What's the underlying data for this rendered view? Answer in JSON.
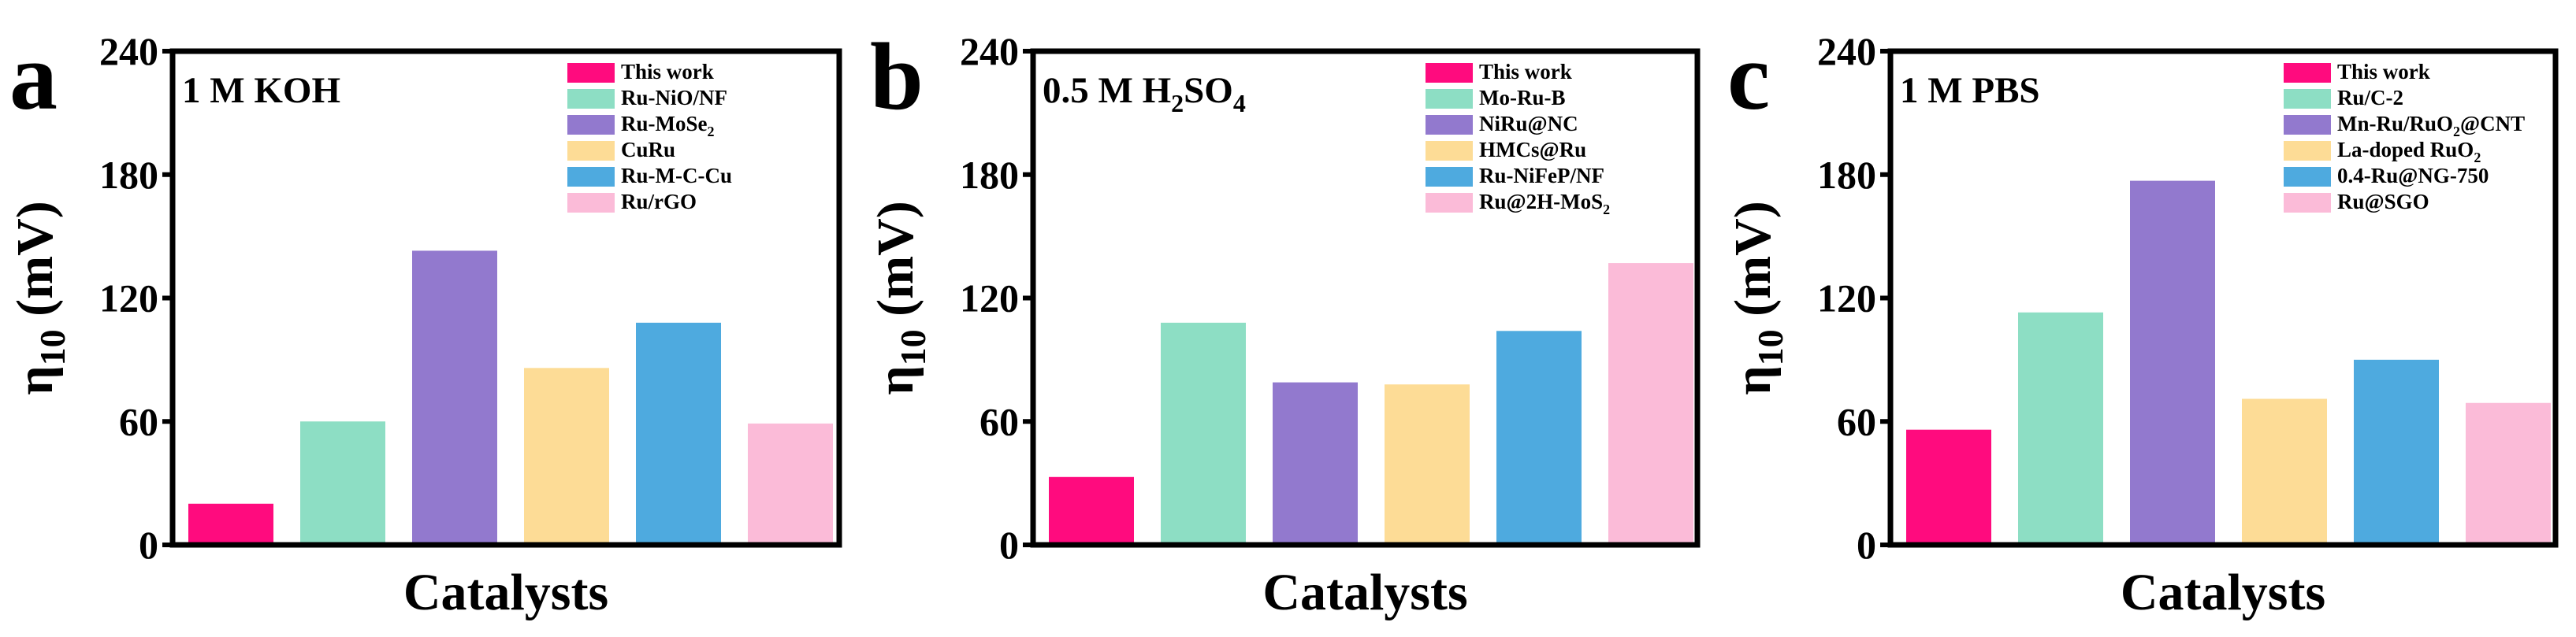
{
  "figure": {
    "panel_letters": [
      "a",
      "b",
      "c"
    ],
    "eta_symbol": "η",
    "eta_sub": "10",
    "unit": " (mV)"
  },
  "chart_data": [
    {
      "type": "bar",
      "panel": "a",
      "title": "1 M KOH",
      "title_base": "1 M KOH",
      "title_sub": "",
      "xlabel": "Catalysts",
      "ylabel": "η10 (mV)",
      "ylim": [
        0,
        240
      ],
      "yticks": [
        0,
        60,
        120,
        180,
        240
      ],
      "categories": [
        "This work",
        "Ru-NiO/NF",
        "Ru-MoSe2",
        "CuRu",
        "Ru-M-C-Cu",
        "Ru/rGO"
      ],
      "legend_parts": [
        [
          "This work",
          ""
        ],
        [
          "Ru-NiO/NF",
          ""
        ],
        [
          "Ru-MoSe",
          "2"
        ],
        [
          "CuRu",
          ""
        ],
        [
          "Ru-M-C-Cu",
          ""
        ],
        [
          "Ru/rGO",
          ""
        ]
      ],
      "values": [
        20,
        60,
        143,
        86,
        108,
        59
      ],
      "colors": [
        "#FF0B7E",
        "#8DDEC4",
        "#9279CE",
        "#FDDC96",
        "#4EAADF",
        "#FBBBD8"
      ],
      "legend_position": "top-right"
    },
    {
      "type": "bar",
      "panel": "b",
      "title": "0.5 M H2SO4",
      "title_base": "0.5 M H",
      "title_sub": "2",
      "title_tail": "SO",
      "title_sub2": "4",
      "xlabel": "Catalysts",
      "ylabel": "η10 (mV)",
      "ylim": [
        0,
        240
      ],
      "yticks": [
        0,
        60,
        120,
        180,
        240
      ],
      "categories": [
        "This work",
        "Mo-Ru-B",
        "NiRu@NC",
        "HMCs@Ru",
        "Ru-NiFeP/NF",
        "Ru@2H-MoS2"
      ],
      "legend_parts": [
        [
          "This work",
          ""
        ],
        [
          "Mo-Ru-B",
          ""
        ],
        [
          "NiRu@NC",
          ""
        ],
        [
          "HMCs@Ru",
          ""
        ],
        [
          "Ru-NiFeP/NF",
          ""
        ],
        [
          "Ru@2H-MoS",
          "2"
        ]
      ],
      "values": [
        33,
        108,
        79,
        78,
        104,
        137
      ],
      "colors": [
        "#FF0B7E",
        "#8DDEC4",
        "#9279CE",
        "#FDDC96",
        "#4EAADF",
        "#FBBBD8"
      ],
      "legend_position": "top-right"
    },
    {
      "type": "bar",
      "panel": "c",
      "title": "1 M PBS",
      "title_base": "1 M PBS",
      "title_sub": "",
      "xlabel": "Catalysts",
      "ylabel": "η10 (mV)",
      "ylim": [
        0,
        240
      ],
      "yticks": [
        0,
        60,
        120,
        180,
        240
      ],
      "categories": [
        "This work",
        "Ru/C-2",
        "Mn-Ru/RuO2@CNT",
        "La-doped RuO2",
        "0.4-Ru@NG-750",
        "Ru@SGO"
      ],
      "legend_parts": [
        [
          "This work",
          "",
          ""
        ],
        [
          "Ru/C-2",
          "",
          ""
        ],
        [
          "Mn-Ru/RuO",
          "2",
          "@CNT"
        ],
        [
          "La-doped RuO",
          "2",
          ""
        ],
        [
          "0.4-Ru@NG-750",
          "",
          ""
        ],
        [
          "Ru@SGO",
          "",
          ""
        ]
      ],
      "values": [
        56,
        113,
        177,
        71,
        90,
        69
      ],
      "colors": [
        "#FF0B7E",
        "#8DDEC4",
        "#9279CE",
        "#FDDC96",
        "#4EAADF",
        "#FBBBD8"
      ],
      "legend_position": "top-right"
    }
  ]
}
